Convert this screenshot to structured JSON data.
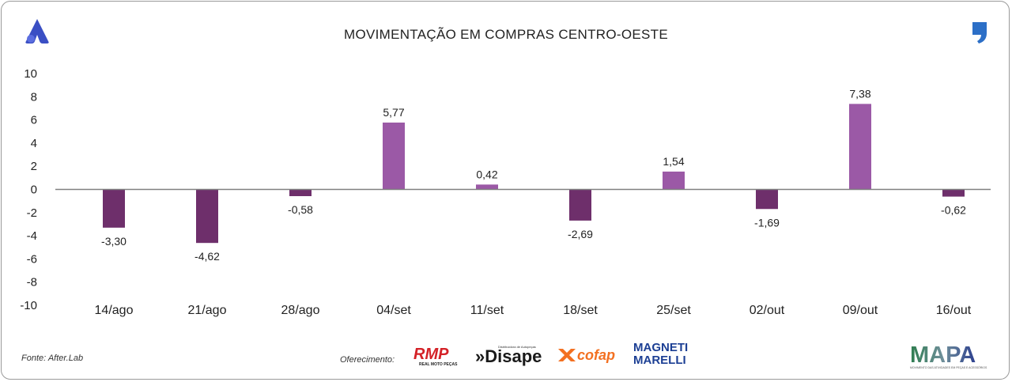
{
  "header": {
    "title": "MOVIMENTAÇÃO EM COMPRAS CENTRO-OESTE"
  },
  "chart_data": {
    "type": "bar",
    "title": "MOVIMENTAÇÃO EM COMPRAS CENTRO-OESTE",
    "categories": [
      "14/ago",
      "21/ago",
      "28/ago",
      "04/set",
      "11/set",
      "18/set",
      "25/set",
      "02/out",
      "09/out",
      "16/out"
    ],
    "values": [
      -3.3,
      -4.62,
      -0.58,
      5.77,
      0.42,
      -2.69,
      1.54,
      -1.69,
      7.38,
      -0.62
    ],
    "value_labels": [
      "-3,30",
      "-4,62",
      "-0,58",
      "5,77",
      "0,42",
      "-2,69",
      "1,54",
      "-1,69",
      "7,38",
      "-0,62"
    ],
    "ylim": [
      -10,
      10
    ],
    "yticks": [
      "10",
      "8",
      "6",
      "4",
      "2",
      "0",
      "-2",
      "-4",
      "-6",
      "-8",
      "-10"
    ],
    "xlabel": "",
    "ylabel": "",
    "colors": {
      "positive": "#9b59a6",
      "negative": "#6e2f6b",
      "axis": "#808080"
    }
  },
  "footer": {
    "source": "Fonte: After.Lab",
    "sponsor_label": "Oferecimento:",
    "sponsors": [
      "RMP",
      "REAL MOTO PEÇAS",
      "Distribuidora de Autopeças",
      "»Disape",
      "cofap",
      "MAGNETI",
      "MARELLI"
    ],
    "mapa": "MAPA",
    "mapa_subtitle": "MOVIMENTO DAS ATIVIDADES EM PEÇAS E ACESSÓRIOS"
  }
}
